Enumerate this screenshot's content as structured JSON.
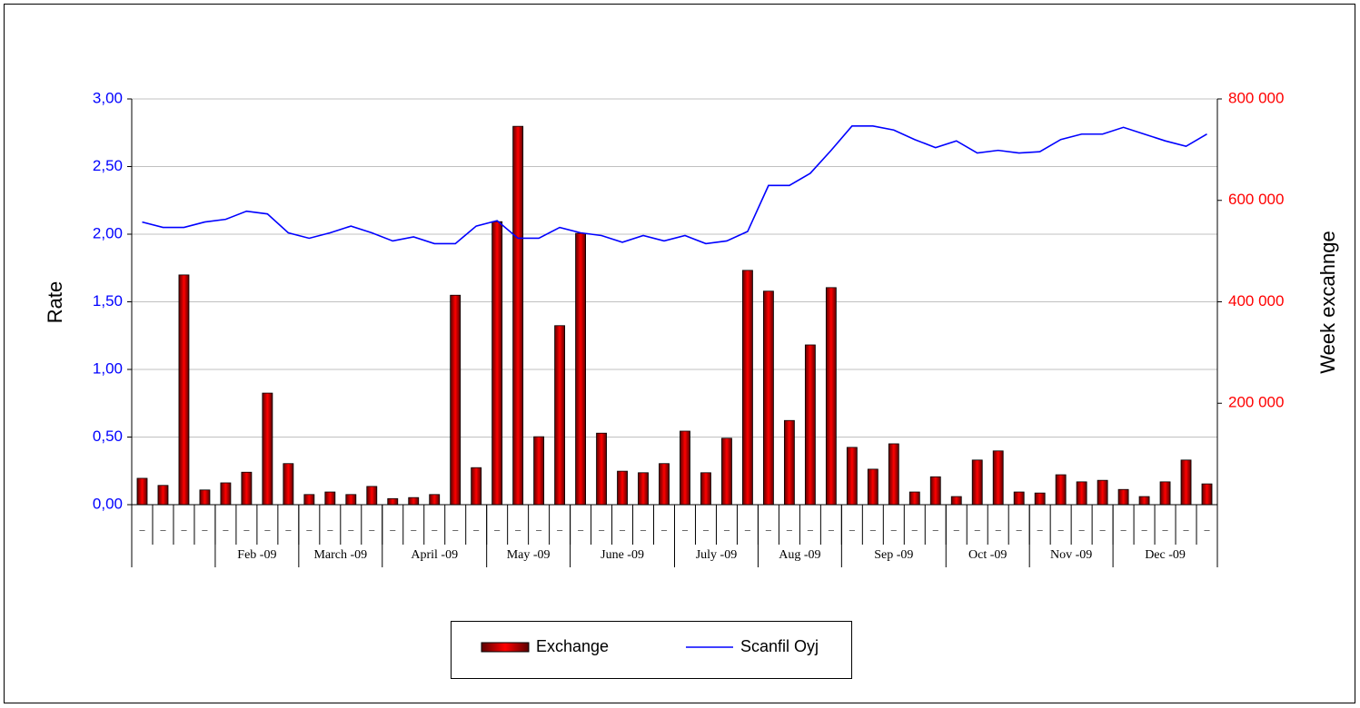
{
  "chart_data": {
    "type": "bar-line",
    "categories": [
      "–",
      "–",
      "–",
      "–",
      "–",
      "–",
      "–",
      "–",
      "–",
      "–",
      "–",
      "–",
      "–",
      "–",
      "–",
      "–",
      "–",
      "–",
      "–",
      "–",
      "–",
      "–",
      "–",
      "–",
      "–",
      "–",
      "–",
      "–",
      "–",
      "–",
      "–",
      "–",
      "–",
      "–",
      "–",
      "–",
      "–",
      "–",
      "–",
      "–",
      "–",
      "–",
      "–",
      "–",
      "–",
      "–",
      "–",
      "–",
      "–",
      "–",
      "–",
      "–"
    ],
    "x_groups": [
      {
        "label": null,
        "span": 4
      },
      {
        "label": "Feb -09",
        "span": 4
      },
      {
        "label": "March -09",
        "span": 4
      },
      {
        "label": "April -09",
        "span": 5
      },
      {
        "label": "May -09",
        "span": 4
      },
      {
        "label": "June -09",
        "span": 5
      },
      {
        "label": "July -09",
        "span": 4
      },
      {
        "label": "Aug -09",
        "span": 4
      },
      {
        "label": "Sep -09",
        "span": 5
      },
      {
        "label": "Oct -09",
        "span": 4
      },
      {
        "label": "Nov -09",
        "span": 4
      },
      {
        "label": "Dec -09",
        "span": 5
      }
    ],
    "ylabel": "Rate",
    "y2label": "Week excahnge",
    "ylim": [
      0,
      3
    ],
    "yticks": [
      {
        "value": 0,
        "label": "0,00"
      },
      {
        "value": 0.5,
        "label": "0,50"
      },
      {
        "value": 1,
        "label": "1,00"
      },
      {
        "value": 1.5,
        "label": "1,50"
      },
      {
        "value": 2,
        "label": "2,00"
      },
      {
        "value": 2.5,
        "label": "2,50"
      },
      {
        "value": 3,
        "label": "3,00"
      }
    ],
    "y2lim": [
      0,
      800000
    ],
    "y2ticks": [
      {
        "value": 200000,
        "label": "200 000"
      },
      {
        "value": 400000,
        "label": "400 000"
      },
      {
        "value": 600000,
        "label": "600 000"
      },
      {
        "value": 800000,
        "label": "800 000"
      }
    ],
    "grid": true,
    "legend": "bottom",
    "series": [
      {
        "name": "Exchange",
        "type": "bar",
        "axis": "y2",
        "color": "#e00000",
        "values": [
          52000,
          38000,
          453000,
          29000,
          43000,
          64000,
          220000,
          81000,
          20000,
          25000,
          20000,
          36000,
          12000,
          14000,
          20000,
          413000,
          73000,
          558000,
          746000,
          134000,
          353000,
          535000,
          141000,
          66000,
          63000,
          81000,
          145000,
          63000,
          131000,
          462000,
          421000,
          166000,
          315000,
          428000,
          113000,
          70000,
          120000,
          25000,
          55000,
          16000,
          88000,
          106000,
          25000,
          23000,
          59000,
          45000,
          48000,
          30000,
          16000,
          45000,
          88000,
          41000
        ]
      },
      {
        "name": "Scanfil Oyj",
        "type": "line",
        "axis": "y",
        "color": "#0000ff",
        "values": [
          2.09,
          2.05,
          2.05,
          2.09,
          2.11,
          2.17,
          2.15,
          2.01,
          1.97,
          2.01,
          2.06,
          2.01,
          1.95,
          1.98,
          1.93,
          1.93,
          2.06,
          2.1,
          1.97,
          1.97,
          2.05,
          2.01,
          1.99,
          1.94,
          1.99,
          1.95,
          1.99,
          1.93,
          1.95,
          2.02,
          2.36,
          2.36,
          2.45,
          2.62,
          2.8,
          2.8,
          2.77,
          2.7,
          2.64,
          2.69,
          2.6,
          2.62,
          2.6,
          2.61,
          2.7,
          2.74,
          2.74,
          2.79,
          2.74,
          2.69,
          2.65,
          2.74
        ]
      }
    ]
  }
}
